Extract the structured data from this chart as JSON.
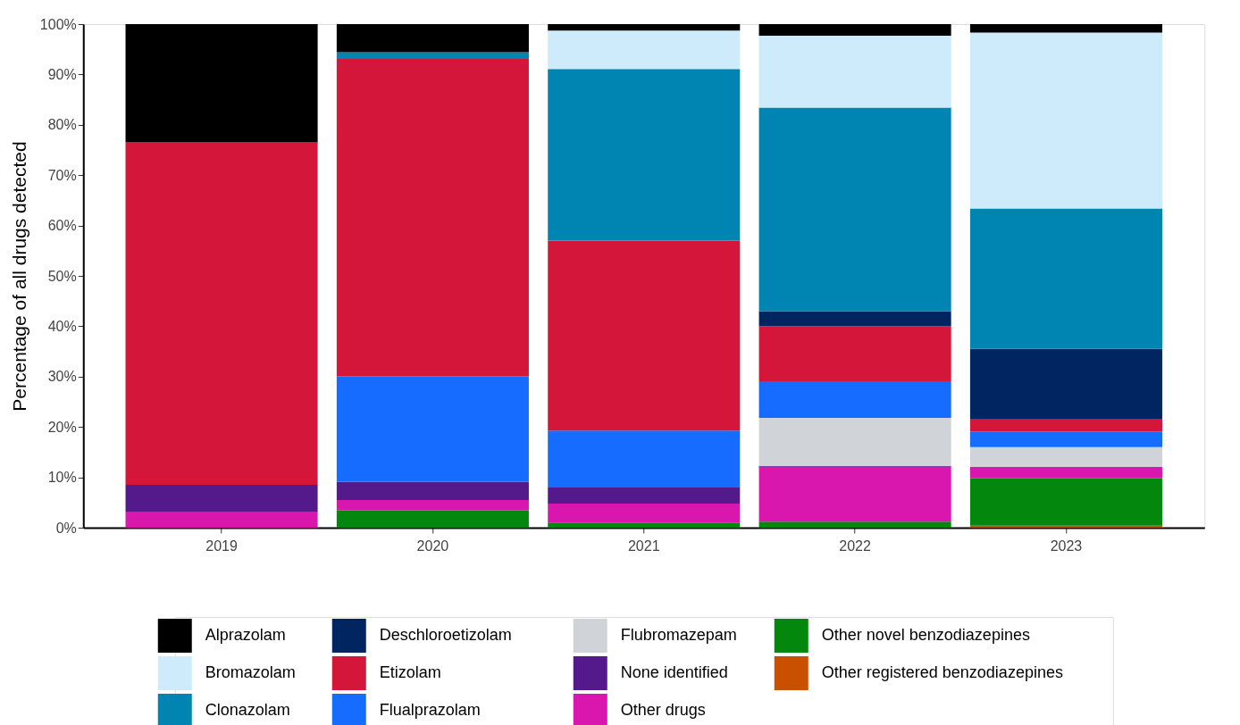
{
  "chart_data": {
    "type": "bar",
    "stacked": true,
    "ylabel": "Percentage of all drugs detected",
    "categories": [
      "2019",
      "2020",
      "2021",
      "2022",
      "2023"
    ],
    "ylim": [
      0,
      100
    ],
    "yticks": [
      {
        "value": 0,
        "label": "0%"
      },
      {
        "value": 10,
        "label": "10%"
      },
      {
        "value": 20,
        "label": "20%"
      },
      {
        "value": 30,
        "label": "30%"
      },
      {
        "value": 40,
        "label": "40%"
      },
      {
        "value": 50,
        "label": "50%"
      },
      {
        "value": 60,
        "label": "60%"
      },
      {
        "value": 70,
        "label": "70%"
      },
      {
        "value": 80,
        "label": "80%"
      },
      {
        "value": 90,
        "label": "90%"
      },
      {
        "value": 100,
        "label": "100%"
      }
    ],
    "grid": false,
    "legend": "bottom",
    "series": [
      {
        "name": "Other registered benzodiazepines",
        "color": "#c95000",
        "values": [
          null,
          null,
          null,
          null,
          0.4
        ]
      },
      {
        "name": "Other novel benzodiazepines",
        "color": "#03880d",
        "values": [
          null,
          3.4,
          1.0,
          1.2,
          9.4
        ]
      },
      {
        "name": "Other drugs",
        "color": "#d916ad",
        "values": [
          3.2,
          2.1,
          3.8,
          10.9,
          2.3
        ]
      },
      {
        "name": "None identified",
        "color": "#541a8b",
        "values": [
          5.3,
          3.6,
          3.2,
          0.2,
          null
        ]
      },
      {
        "name": "Flubromazepam",
        "color": "#d0d4d8",
        "values": [
          null,
          null,
          null,
          9.5,
          3.9
        ]
      },
      {
        "name": "Flualprazolam",
        "color": "#166cff",
        "values": [
          null,
          21.0,
          11.3,
          7.3,
          3.1
        ]
      },
      {
        "name": "Etizolam",
        "color": "#d5163b",
        "values": [
          68.1,
          63.0,
          37.7,
          10.9,
          2.4
        ]
      },
      {
        "name": "Deschloroetizolam",
        "color": "#002561",
        "values": [
          null,
          null,
          null,
          3.0,
          14.0
        ]
      },
      {
        "name": "Clonazolam",
        "color": "#0085b2",
        "values": [
          null,
          1.3,
          34.1,
          40.4,
          27.9
        ]
      },
      {
        "name": "Bromazolam",
        "color": "#cdebfa",
        "values": [
          null,
          null,
          7.6,
          14.3,
          34.9
        ]
      },
      {
        "name": "Alprazolam",
        "color": "#000000",
        "values": [
          23.4,
          5.6,
          1.3,
          2.3,
          1.7
        ]
      }
    ]
  }
}
